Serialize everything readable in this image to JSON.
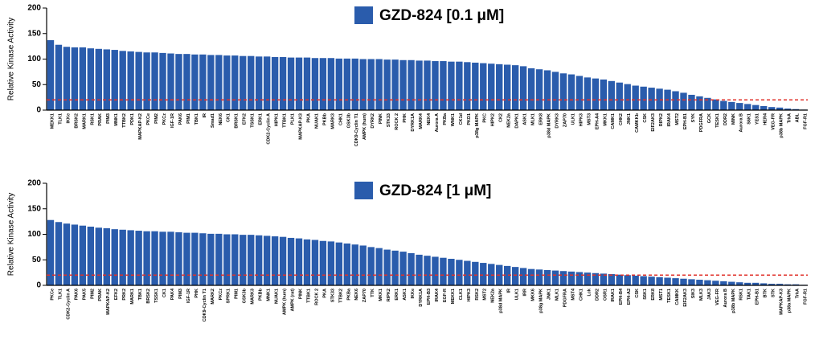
{
  "chart_data": [
    {
      "type": "bar",
      "legend": "top",
      "ylabel": "Relative Kinase Activity",
      "ylim": [
        0,
        200
      ],
      "yticks": [
        0,
        50,
        100,
        150,
        200
      ],
      "reference_line": {
        "value": 20,
        "color": "#e0302a"
      },
      "categories": [
        "MEKK1",
        "TLK1",
        "IKKe",
        "BRSK2",
        "MARK1",
        "RSK1",
        "PRAK",
        "PIM3",
        "MNK1",
        "TTBK2",
        "PDK1",
        "MAPKAP-K2",
        "PKCe",
        "PIM2",
        "PKCz",
        "IGF-1R",
        "PAK6",
        "PIM1",
        "TBK1",
        "IR",
        "Smad1",
        "NEK6",
        "CK1",
        "BRSK1",
        "EFK2",
        "TSSK1",
        "ERK1",
        "CDK2-Cyclin A",
        "HIPK1",
        "TTBK1",
        "PLK1",
        "MAPKAP-K3",
        "PKA",
        "NUAK1",
        "PKBb",
        "MARK3",
        "CHK1",
        "GSK3b",
        "CDK9-Cyclin T1",
        "AMPK (hum)",
        "DYRK2",
        "PINK",
        "STK33",
        "ROCK 2",
        "PHK",
        "DYRK1A",
        "MARK4",
        "NEK4",
        "Aurora A",
        "PKBa",
        "WNK1",
        "CK1d",
        "PKD1",
        "p38g MAPK",
        "PKC",
        "HIPK2",
        "CK2",
        "NEK2a",
        "DAPK1",
        "ASK1",
        "MLK1",
        "ERK8",
        "p38d MAPK",
        "DYRK3",
        "ZAP70",
        "ULK1",
        "HIPK3",
        "MST3",
        "EPH-A4",
        "MKK1",
        "CAMK1",
        "CHK2",
        "JNK1",
        "CAMKKb",
        "CSK",
        "EIF2AK3",
        "RIPK2",
        "IRAK4",
        "MST2",
        "EPH-B1",
        "SYK",
        "PDGFRA",
        "GCK",
        "TESK1",
        "DDR2",
        "MINK",
        "Aurora B",
        "S6K1",
        "YES1",
        "HER4",
        "VEG-FR",
        "p38b MAPK",
        "TrkA",
        "ABL",
        "FGF-R1"
      ],
      "series": [
        {
          "name": "GZD-824 [0.1 μM]",
          "color": "#2a5cac",
          "values": [
            137,
            128,
            124,
            123,
            123,
            121,
            120,
            119,
            118,
            116,
            115,
            114,
            113,
            113,
            112,
            111,
            110,
            110,
            109,
            109,
            108,
            108,
            107,
            107,
            106,
            106,
            105,
            105,
            104,
            104,
            103,
            103,
            103,
            102,
            102,
            102,
            101,
            101,
            101,
            100,
            100,
            100,
            99,
            99,
            98,
            98,
            97,
            97,
            96,
            96,
            95,
            95,
            94,
            93,
            92,
            91,
            90,
            89,
            88,
            86,
            82,
            80,
            78,
            75,
            72,
            70,
            67,
            64,
            62,
            60,
            57,
            54,
            51,
            48,
            46,
            44,
            42,
            40,
            37,
            34,
            30,
            27,
            24,
            21,
            18,
            16,
            14,
            12,
            10,
            8,
            6,
            5,
            3,
            2,
            1
          ]
        }
      ]
    },
    {
      "type": "bar",
      "legend": "top",
      "ylabel": "Relative Kinase Activity",
      "ylim": [
        0,
        200
      ],
      "yticks": [
        0,
        50,
        100,
        150,
        200
      ],
      "reference_line": {
        "value": 20,
        "color": "#e0302a"
      },
      "categories": [
        "PKCe",
        "TLK1",
        "CDK2-Cyclin A",
        "PAK6",
        "PAK5",
        "PIM2",
        "PRAK",
        "MAPKAP-K2",
        "EFK2",
        "PRK2",
        "MARK1",
        "TBK1",
        "BRSK2",
        "TSSK1",
        "CK1",
        "PAK4",
        "PIM3",
        "IGF-1R",
        "PHK",
        "CDK9-Cyclin T1",
        "MARK2",
        "PKCz",
        "SPRK1",
        "PIM1",
        "GSK3b",
        "MARK3",
        "PKBb",
        "MNK1",
        "NUAK1",
        "AMPK (hum)",
        "AMPK (rat)",
        "PINK",
        "TTBK1",
        "ROCK 2",
        "PKA",
        "STK33",
        "TTBK2",
        "PKBa",
        "NEK6",
        "ZAP70",
        "TTK",
        "MKK1",
        "RIPK2",
        "ERK1",
        "ASK1",
        "IKKe",
        "DYRK1A",
        "EPH-B3",
        "IRAK4",
        "EGF-R",
        "MEKK1",
        "CLK1",
        "HIPK3",
        "RSK2",
        "MST2",
        "NEK2a",
        "p38d MAPK",
        "IR",
        "ULK1",
        "IRR",
        "MKK6",
        "p38g MAPK",
        "JNK1",
        "MLK1",
        "PDGFRA",
        "MST4",
        "CHK1",
        "Lck",
        "DDR2",
        "OSR1",
        "IRAK1",
        "EPH-B4",
        "EPH-A2",
        "CSK",
        "S6K1",
        "ERK8",
        "MST1",
        "TESK1",
        "CAMKK",
        "EIF2AK3",
        "SIK3",
        "MLK3",
        "JAK3",
        "VEG-FR",
        "Aurora B",
        "p38b MAPK",
        "RSK1",
        "TAK1",
        "EPH-B1",
        "BTK",
        "STK",
        "MAPKAP-K3",
        "p38a MAPK",
        "TrkA",
        "FGF-R1"
      ],
      "series": [
        {
          "name": "GZD-824 [1 μM]",
          "color": "#2a5cac",
          "values": [
            128,
            124,
            121,
            119,
            117,
            115,
            113,
            112,
            110,
            109,
            108,
            107,
            106,
            106,
            105,
            105,
            104,
            103,
            103,
            102,
            101,
            101,
            100,
            100,
            99,
            99,
            98,
            97,
            96,
            95,
            93,
            92,
            90,
            89,
            87,
            86,
            84,
            82,
            80,
            78,
            75,
            73,
            70,
            68,
            66,
            63,
            60,
            58,
            56,
            54,
            52,
            50,
            48,
            46,
            44,
            42,
            40,
            38,
            36,
            34,
            32,
            31,
            30,
            29,
            28,
            27,
            26,
            25,
            24,
            23,
            22,
            21,
            20,
            19,
            18,
            17,
            16,
            15,
            14,
            13,
            12,
            11,
            10,
            9,
            8,
            7,
            6,
            5,
            5,
            4,
            3,
            3,
            2,
            2,
            1
          ]
        }
      ]
    }
  ]
}
